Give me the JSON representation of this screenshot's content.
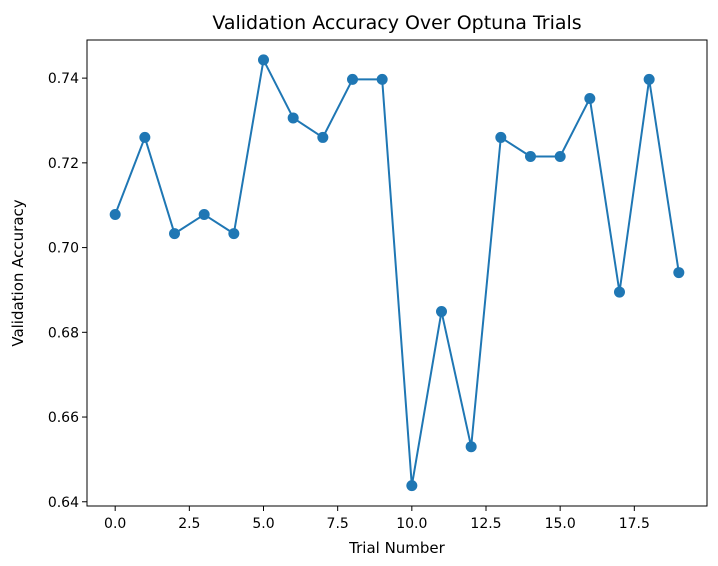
{
  "chart_data": {
    "type": "line",
    "title": "Validation Accuracy Over Optuna Trials",
    "xlabel": "Trial Number",
    "ylabel": "Validation Accuracy",
    "xlim": [
      -0.95,
      19.95
    ],
    "ylim": [
      0.639,
      0.749
    ],
    "grid": false,
    "marker": "circle",
    "series": [
      {
        "name": "validation_accuracy",
        "color": "#1f77b4",
        "x": [
          0,
          1,
          2,
          3,
          4,
          5,
          6,
          7,
          8,
          9,
          10,
          11,
          12,
          13,
          14,
          15,
          16,
          17,
          18,
          19
        ],
        "y": [
          0.7078,
          0.726,
          0.7033,
          0.7078,
          0.7033,
          0.7443,
          0.7306,
          0.726,
          0.7397,
          0.7397,
          0.6438,
          0.6849,
          0.653,
          0.726,
          0.7215,
          0.7215,
          0.7352,
          0.6895,
          0.7397,
          0.6941
        ]
      }
    ],
    "x_ticks": [
      0.0,
      2.5,
      5.0,
      7.5,
      10.0,
      12.5,
      15.0,
      17.5
    ],
    "x_tick_labels": [
      "0.0",
      "2.5",
      "5.0",
      "7.5",
      "10.0",
      "12.5",
      "15.0",
      "17.5"
    ],
    "y_ticks": [
      0.64,
      0.66,
      0.68,
      0.7,
      0.72,
      0.74
    ],
    "y_tick_labels": [
      "0.64",
      "0.66",
      "0.68",
      "0.70",
      "0.72",
      "0.74"
    ]
  }
}
